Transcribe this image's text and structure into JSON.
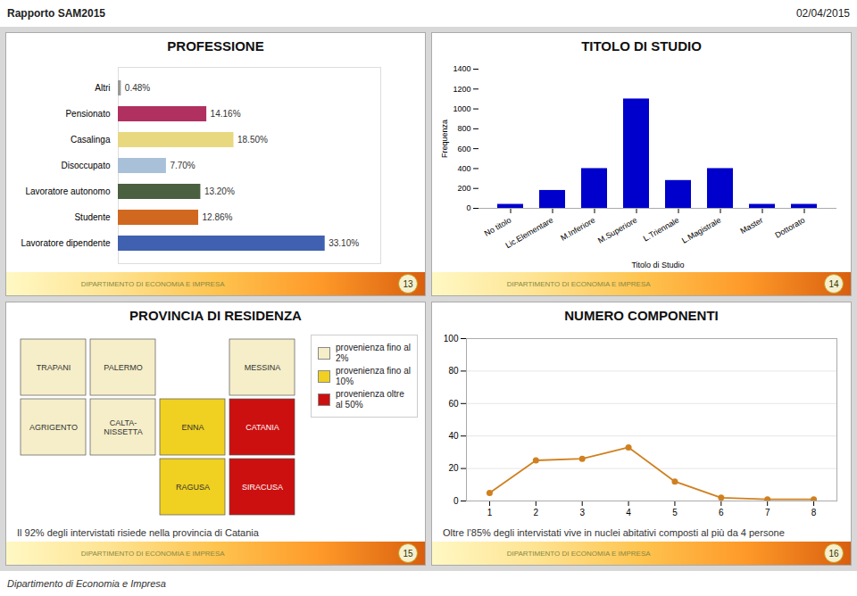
{
  "title": "Rapporto SAM2015",
  "annotations": [
    "02/04/2015",
    "Dipartimento di Economia e Impresa"
  ],
  "chart_data": [
    {
      "type": "bar",
      "orientation": "horizontal",
      "title": "PROFESSIONE",
      "categories": [
        "Altri",
        "Pensionato",
        "Casalinga",
        "Disoccupato",
        "Lavoratore autonomo",
        "Studente",
        "Lavoratore dipendente"
      ],
      "values": [
        0.48,
        14.16,
        18.5,
        7.7,
        13.2,
        12.86,
        33.1
      ],
      "value_labels": [
        "0.48%",
        "14.16%",
        "18.50%",
        "7.70%",
        "13.20%",
        "12.86%",
        "33.10%"
      ],
      "data_labels": true,
      "colors": [
        "#999999",
        "#b03060",
        "#e8d880",
        "#a8c0d8",
        "#4a6040",
        "#d06820",
        "#4060b0"
      ],
      "xlim": [
        0,
        42
      ],
      "tick_labels": "y",
      "annotations": [
        "DIPARTIMENTO DI ECONOMIA E IMPRESA",
        "13"
      ]
    },
    {
      "type": "bar",
      "title": "TITOLO DI STUDIO",
      "categories": [
        "No titolo",
        "Lic.Elementare",
        "M.Inferiore",
        "M.Superiore",
        "L.Triennale",
        "L.Magistrale",
        "Master",
        "Dottorato"
      ],
      "values": [
        40,
        180,
        400,
        1100,
        280,
        400,
        40,
        40
      ],
      "color": "#0000cc",
      "xlabel": "Titolo di Studio",
      "ylabel": "Frequenza",
      "ylim": [
        0,
        1400
      ],
      "yticks": [
        0,
        200,
        400,
        600,
        800,
        1000,
        1200,
        1400
      ],
      "annotations": [
        "DIPARTIMENTO DI ECONOMIA E IMPRESA",
        "14"
      ]
    },
    {
      "type": "map",
      "title": "PROVINCIA DI RESIDENZA",
      "categories": [
        "TRAPANI",
        "PALERMO",
        "MESSINA",
        "AGRIGENTO",
        "CALTA-\nNISSETTA",
        "ENNA",
        "CATANIA",
        "SIRACUSA",
        "RAGUSA"
      ],
      "colors": [
        "#f5eec8",
        "#f5eec8",
        "#f5eec8",
        "#f5eec8",
        "#f5eec8",
        "#f0d020",
        "#cc1010",
        "#cc1010",
        "#f0d020"
      ],
      "series": [
        {
          "name": "provenienza fino al\n2%",
          "color": "#f5eec8"
        },
        {
          "name": "provenienza fino al\n10%",
          "color": "#f0d020"
        },
        {
          "name": "provenienza oltre\nal 50%",
          "color": "#cc1010"
        }
      ],
      "legend": "upper right",
      "caption": "Il 92% degli intervistati risiede nella provincia di Catania",
      "annotations": [
        "DIPARTIMENTO DI ECONOMIA E IMPRESA",
        "15"
      ]
    },
    {
      "type": "line",
      "title": "NUMERO COMPONENTI",
      "x": [
        1,
        2,
        3,
        4,
        5,
        6,
        7,
        8
      ],
      "values": [
        5,
        25,
        26,
        33,
        12,
        2,
        1,
        1
      ],
      "color": "#d08020",
      "marker": "circle",
      "xlim": [
        0.5,
        8.5
      ],
      "xticks": [
        1,
        2,
        3,
        4,
        5,
        6,
        7,
        8
      ],
      "ylim": [
        0,
        100
      ],
      "yticks": [
        0,
        20,
        40,
        60,
        80,
        100
      ],
      "grid": "y",
      "caption": "Oltre l’85% degli intervistati vive in nuclei abitativi composti al più da 4 persone",
      "annotations": [
        "DIPARTIMENTO DI ECONOMIA E IMPRESA",
        "16"
      ]
    }
  ]
}
